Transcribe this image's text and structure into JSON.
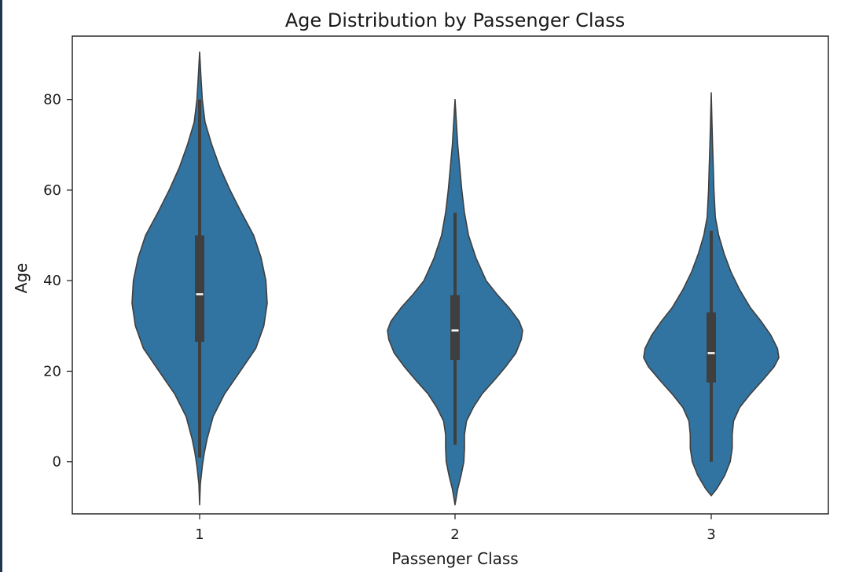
{
  "chart_data": {
    "type": "violin",
    "title": "Age Distribution by Passenger Class",
    "xlabel": "Passenger Class",
    "ylabel": "Age",
    "categories": [
      "1",
      "2",
      "3"
    ],
    "ylim": [
      -11.5,
      94
    ],
    "yticks": [
      0,
      20,
      40,
      60,
      80
    ],
    "fill_color": "#3274a1",
    "edge_color": "#3f3f3f",
    "grid": false,
    "series": [
      {
        "category": "1",
        "min_extent": -9.5,
        "max_extent": 90.5,
        "whisker_low": 0.9,
        "whisker_high": 80,
        "q1": 26.5,
        "median": 37,
        "q3": 50,
        "density": [
          [
            -9.5,
            0
          ],
          [
            -5,
            0.01
          ],
          [
            -1,
            0.04
          ],
          [
            2,
            0.07
          ],
          [
            5,
            0.11
          ],
          [
            10,
            0.2
          ],
          [
            15,
            0.37
          ],
          [
            20,
            0.6
          ],
          [
            25,
            0.83
          ],
          [
            30,
            0.95
          ],
          [
            35,
            1.0
          ],
          [
            40,
            0.98
          ],
          [
            45,
            0.91
          ],
          [
            50,
            0.8
          ],
          [
            55,
            0.62
          ],
          [
            60,
            0.45
          ],
          [
            65,
            0.3
          ],
          [
            70,
            0.18
          ],
          [
            75,
            0.08
          ],
          [
            80,
            0.04
          ],
          [
            85,
            0.02
          ],
          [
            90.5,
            0
          ]
        ]
      },
      {
        "category": "2",
        "min_extent": -9.5,
        "max_extent": 80,
        "whisker_low": 3.8,
        "whisker_high": 55,
        "q1": 22.5,
        "median": 29,
        "q3": 36.8,
        "density": [
          [
            -9.5,
            0
          ],
          [
            -6,
            0.04
          ],
          [
            -3,
            0.09
          ],
          [
            0,
            0.13
          ],
          [
            3,
            0.14
          ],
          [
            6,
            0.14
          ],
          [
            9,
            0.17
          ],
          [
            12,
            0.27
          ],
          [
            15,
            0.4
          ],
          [
            18,
            0.58
          ],
          [
            21,
            0.75
          ],
          [
            24,
            0.9
          ],
          [
            27,
            0.98
          ],
          [
            29,
            1.0
          ],
          [
            31,
            0.95
          ],
          [
            34,
            0.8
          ],
          [
            37,
            0.62
          ],
          [
            40,
            0.46
          ],
          [
            45,
            0.31
          ],
          [
            50,
            0.2
          ],
          [
            55,
            0.14
          ],
          [
            60,
            0.1
          ],
          [
            65,
            0.07
          ],
          [
            70,
            0.04
          ],
          [
            75,
            0.02
          ],
          [
            80,
            0
          ]
        ]
      },
      {
        "category": "3",
        "min_extent": -7.5,
        "max_extent": 81.5,
        "whisker_low": 0,
        "whisker_high": 51,
        "q1": 17.5,
        "median": 24,
        "q3": 33,
        "density": [
          [
            -7.5,
            0
          ],
          [
            -6,
            0.08
          ],
          [
            -3,
            0.2
          ],
          [
            0,
            0.28
          ],
          [
            3,
            0.31
          ],
          [
            6,
            0.31
          ],
          [
            9,
            0.33
          ],
          [
            12,
            0.42
          ],
          [
            15,
            0.58
          ],
          [
            18,
            0.76
          ],
          [
            21,
            0.93
          ],
          [
            23,
            1.0
          ],
          [
            25,
            0.98
          ],
          [
            28,
            0.88
          ],
          [
            31,
            0.74
          ],
          [
            34,
            0.58
          ],
          [
            38,
            0.42
          ],
          [
            42,
            0.29
          ],
          [
            46,
            0.19
          ],
          [
            50,
            0.11
          ],
          [
            54,
            0.06
          ],
          [
            60,
            0.04
          ],
          [
            65,
            0.03
          ],
          [
            70,
            0.02
          ],
          [
            75,
            0.01
          ],
          [
            81.5,
            0
          ]
        ]
      }
    ]
  }
}
